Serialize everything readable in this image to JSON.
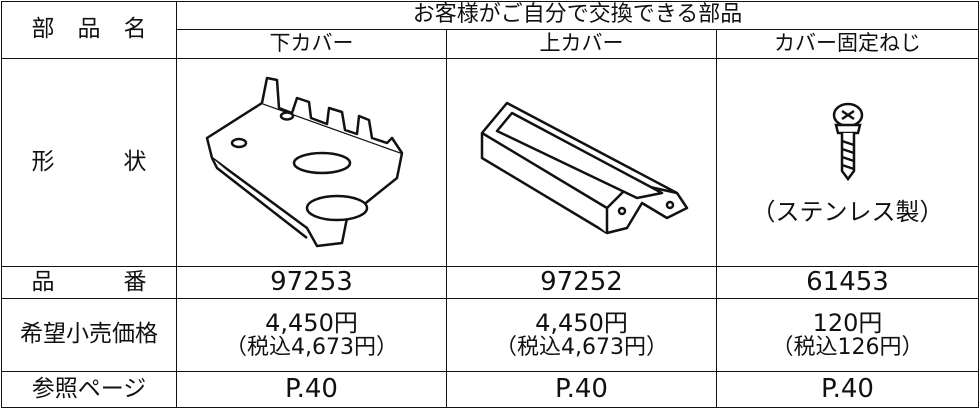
{
  "table": {
    "header": {
      "label": "部　品　名",
      "group": "お客様がご自分で交換できる部品",
      "columns": [
        "下カバー",
        "上カバー",
        "カバー固定ねじ"
      ]
    },
    "shape": {
      "label": "形　　　状",
      "note": "（ステンレス製）"
    },
    "part_no": {
      "label": "品　　　番",
      "values": [
        "97253",
        "97252",
        "61453"
      ]
    },
    "price": {
      "label": "希望小売価格",
      "values": [
        "4,450円",
        "4,450円",
        "120円"
      ],
      "tax": [
        "（税込4,673円）",
        "（税込4,673円）",
        "（税込126円）"
      ]
    },
    "page": {
      "label": "参照ページ",
      "values": [
        "P.40",
        "P.40",
        "P.40"
      ]
    }
  }
}
